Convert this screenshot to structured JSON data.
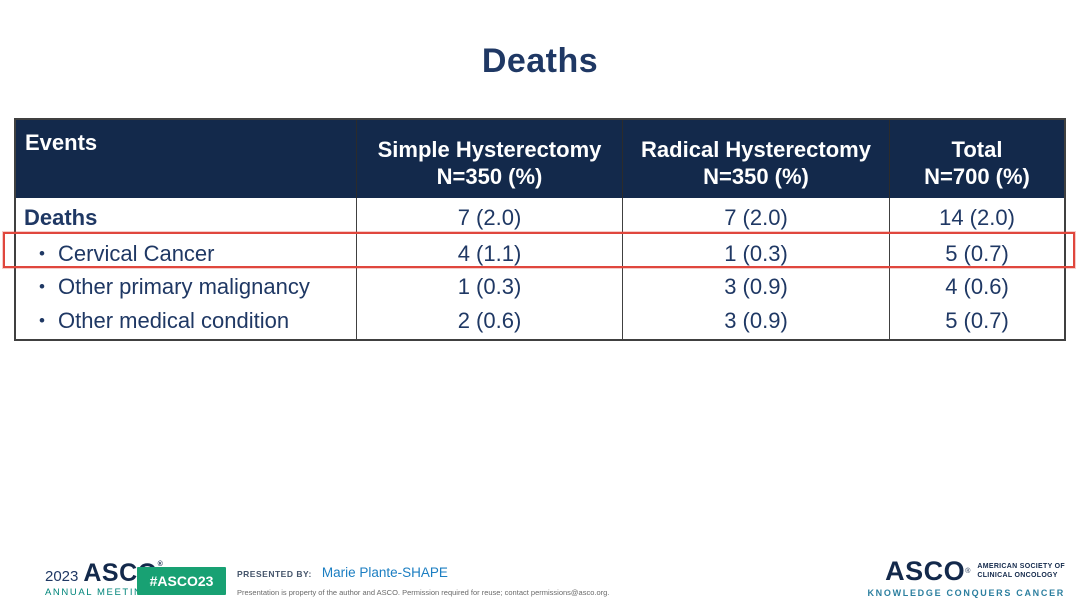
{
  "slide": {
    "title": "Deaths"
  },
  "table": {
    "bullet_char": "•",
    "columns": [
      {
        "label": "Events",
        "sublabel": ""
      },
      {
        "label": "Simple Hysterectomy",
        "sublabel": "N=350 (%)"
      },
      {
        "label": "Radical Hysterectomy",
        "sublabel": "N=350 (%)"
      },
      {
        "label": "Total",
        "sublabel": "N=700 (%)"
      }
    ],
    "rows": [
      {
        "label": "Deaths",
        "bold": true,
        "highlighted": false,
        "values": [
          "7 (2.0)",
          "7 (2.0)",
          "14 (2.0)"
        ]
      },
      {
        "label": "Cervical Cancer",
        "bold": false,
        "highlighted": true,
        "values": [
          "4 (1.1)",
          "1 (0.3)",
          "5 (0.7)"
        ]
      },
      {
        "label": "Other primary malignancy",
        "bold": false,
        "highlighted": false,
        "values": [
          "1 (0.3)",
          "3 (0.9)",
          "4 (0.6)"
        ]
      },
      {
        "label": "Other medical condition",
        "bold": false,
        "highlighted": false,
        "values": [
          "2 (0.6)",
          "3 (0.9)",
          "5 (0.7)"
        ]
      }
    ]
  },
  "footer": {
    "year": "2023",
    "asco_wordmark": "ASCO",
    "reg": "®",
    "annual_meeting": "ANNUAL MEETING",
    "hashtag": "#ASCO23",
    "presented_by_label": "PRESENTED BY:",
    "presenter": "Marie Plante-SHAPE",
    "disclaimer": "Presentation is property of the author and ASCO. Permission required for reuse; contact permissions@asco.org.",
    "logo_right": {
      "wordmark": "ASCO",
      "society_line1": "AMERICAN SOCIETY OF",
      "society_line2": "CLINICAL ONCOLOGY",
      "tagline": "KNOWLEDGE CONQUERS CANCER"
    }
  },
  "colors": {
    "header_navy": "#13294b",
    "text_navy": "#1f3864",
    "highlight_red": "#e0473d",
    "badge_green": "#18a173",
    "meeting_teal": "#00857a",
    "tagline_teal": "#2c7f9f",
    "presenter_blue": "#1b7ec2",
    "table_border": "#404040"
  }
}
